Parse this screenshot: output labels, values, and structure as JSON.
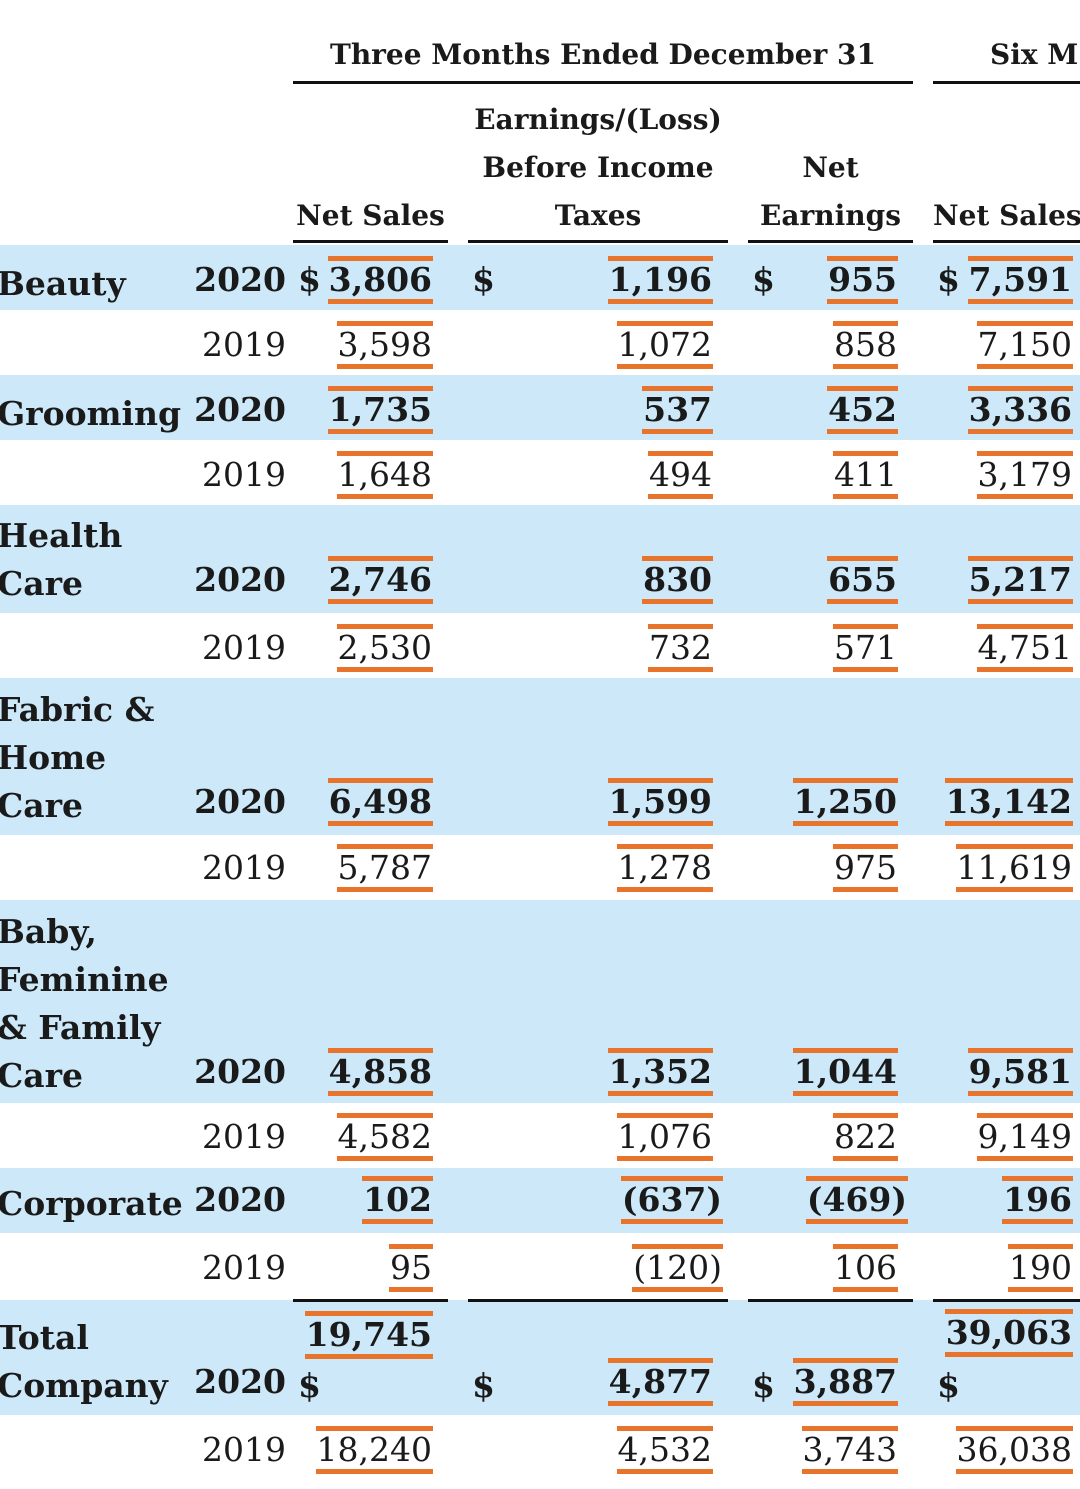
{
  "header": {
    "groups": [
      {
        "title": "Three Months Ended December 31"
      },
      {
        "title": "Six M"
      }
    ],
    "columns": [
      {
        "lines": [
          "Net Sales"
        ]
      },
      {
        "lines": [
          "Earnings/(Loss)",
          "Before Income",
          "Taxes"
        ]
      },
      {
        "lines": [
          "Net",
          "Earnings"
        ]
      },
      {
        "lines": [
          "Net Sales"
        ]
      }
    ]
  },
  "table": {
    "rows": [
      {
        "label": [
          "Beauty"
        ],
        "year": "2020",
        "cells": [
          {
            "sign": "$",
            "value": "3,806"
          },
          {
            "sign": "$",
            "value": "1,196"
          },
          {
            "sign": "$",
            "value": "955"
          },
          {
            "sign": "$",
            "value": "7,591"
          }
        ]
      },
      {
        "year": "2019",
        "cells": [
          {
            "value": "3,598"
          },
          {
            "value": "1,072"
          },
          {
            "value": "858"
          },
          {
            "value": "7,150"
          }
        ]
      },
      {
        "label": [
          "Grooming"
        ],
        "year": "2020",
        "cells": [
          {
            "value": "1,735"
          },
          {
            "value": "537"
          },
          {
            "value": "452"
          },
          {
            "value": "3,336"
          }
        ]
      },
      {
        "year": "2019",
        "cells": [
          {
            "value": "1,648"
          },
          {
            "value": "494"
          },
          {
            "value": "411"
          },
          {
            "value": "3,179"
          }
        ]
      },
      {
        "label": [
          "Health",
          "Care"
        ],
        "year": "2020",
        "cells": [
          {
            "value": "2,746"
          },
          {
            "value": "830"
          },
          {
            "value": "655"
          },
          {
            "value": "5,217"
          }
        ]
      },
      {
        "year": "2019",
        "cells": [
          {
            "value": "2,530"
          },
          {
            "value": "732"
          },
          {
            "value": "571"
          },
          {
            "value": "4,751"
          }
        ]
      },
      {
        "label": [
          "Fabric &",
          "Home",
          "Care"
        ],
        "year": "2020",
        "cells": [
          {
            "value": "6,498"
          },
          {
            "value": "1,599"
          },
          {
            "value": "1,250"
          },
          {
            "value": "13,142"
          }
        ]
      },
      {
        "year": "2019",
        "cells": [
          {
            "value": "5,787"
          },
          {
            "value": "1,278"
          },
          {
            "value": "975"
          },
          {
            "value": "11,619"
          }
        ]
      },
      {
        "label": [
          "Baby,",
          "Feminine",
          "& Family",
          "Care"
        ],
        "year": "2020",
        "cells": [
          {
            "value": "4,858"
          },
          {
            "value": "1,352"
          },
          {
            "value": "1,044"
          },
          {
            "value": "9,581"
          }
        ]
      },
      {
        "year": "2019",
        "cells": [
          {
            "value": "4,582"
          },
          {
            "value": "1,076"
          },
          {
            "value": "822"
          },
          {
            "value": "9,149"
          }
        ]
      },
      {
        "label": [
          "Corporate"
        ],
        "year": "2020",
        "cells": [
          {
            "value": "102"
          },
          {
            "value": "(637)"
          },
          {
            "value": "(469)"
          },
          {
            "value": "196"
          }
        ]
      },
      {
        "year": "2019",
        "cells": [
          {
            "value": "95"
          },
          {
            "value": "(120)"
          },
          {
            "value": "106"
          },
          {
            "value": "190"
          }
        ]
      },
      {
        "label": [
          "Total",
          "Company"
        ],
        "year": "2020",
        "cells": [
          {
            "sign": "$",
            "value": "19,745"
          },
          {
            "sign": "$",
            "value": "4,877"
          },
          {
            "sign": "$",
            "value": "3,887"
          },
          {
            "sign": "$",
            "value": "39,063"
          }
        ]
      },
      {
        "year": "2019",
        "cells": [
          {
            "value": "18,240"
          },
          {
            "value": "4,532"
          },
          {
            "value": "3,743"
          },
          {
            "value": "36,038"
          }
        ]
      }
    ]
  }
}
